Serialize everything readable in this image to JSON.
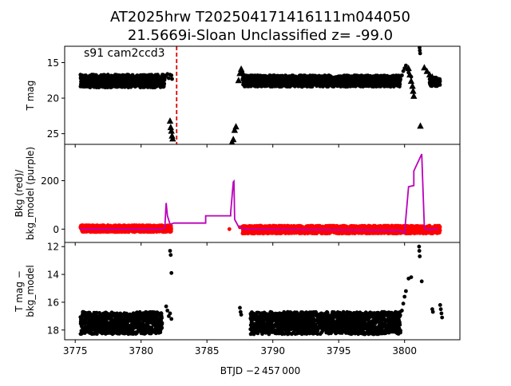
{
  "figure": {
    "title_line1": "AT2025hrw  T202504171416111m044050",
    "title_line2": "21.5669i-Sloan Unclassified z= -99.0",
    "xlabel": "BTJD −2 457 000"
  },
  "chart_data": [
    {
      "type": "scatter",
      "panel": "top",
      "ylabel": "T mag",
      "annotation": "s91 cam2ccd3",
      "xlim": [
        3774.2,
        3804.2
      ],
      "ylim": [
        26.5,
        12.7
      ],
      "yticks": [
        15,
        20,
        25
      ],
      "inverted_y": true,
      "vline": {
        "x": 3782.7,
        "color": "#dd0000",
        "style": "dashed"
      },
      "series": [
        {
          "marker": "dot",
          "color": "#000000",
          "segments": [
            {
              "x_start": 3775.4,
              "x_end": 3781.8,
              "y_center": 17.6,
              "spread": 0.9
            },
            {
              "x_start": 3787.7,
              "x_end": 3799.7,
              "y_center": 17.6,
              "spread": 0.8
            },
            {
              "x_start": 3801.9,
              "x_end": 3802.7,
              "y_center": 17.7,
              "spread": 0.6
            }
          ],
          "points": [
            {
              "x": 3781.9,
              "y": 16.9
            },
            {
              "x": 3782.0,
              "y": 16.6
            },
            {
              "x": 3782.1,
              "y": 17.2
            },
            {
              "x": 3782.2,
              "y": 16.7
            },
            {
              "x": 3782.3,
              "y": 16.8
            },
            {
              "x": 3782.35,
              "y": 17.3
            },
            {
              "x": 3799.8,
              "y": 16.8
            },
            {
              "x": 3799.9,
              "y": 16.2
            },
            {
              "x": 3800.0,
              "y": 15.8
            },
            {
              "x": 3800.1,
              "y": 15.4
            },
            {
              "x": 3800.2,
              "y": 15.9
            },
            {
              "x": 3800.3,
              "y": 16.4
            },
            {
              "x": 3800.5,
              "y": 17.0
            },
            {
              "x": 3801.1,
              "y": 12.1
            },
            {
              "x": 3801.12,
              "y": 12.5
            },
            {
              "x": 3801.14,
              "y": 12.9
            },
            {
              "x": 3801.16,
              "y": 13.3
            },
            {
              "x": 3801.18,
              "y": 13.7
            }
          ]
        },
        {
          "marker": "triangle",
          "color": "#000000",
          "points": [
            {
              "x": 3782.2,
              "y": 23.2
            },
            {
              "x": 3782.25,
              "y": 24.1
            },
            {
              "x": 3782.3,
              "y": 24.6
            },
            {
              "x": 3782.35,
              "y": 25.3
            },
            {
              "x": 3782.4,
              "y": 25.7
            },
            {
              "x": 3786.9,
              "y": 26.2
            },
            {
              "x": 3787.0,
              "y": 25.8
            },
            {
              "x": 3787.1,
              "y": 24.5
            },
            {
              "x": 3787.2,
              "y": 24.0
            },
            {
              "x": 3787.4,
              "y": 17.5
            },
            {
              "x": 3787.5,
              "y": 16.5
            },
            {
              "x": 3787.6,
              "y": 15.9
            },
            {
              "x": 3787.7,
              "y": 16.4
            },
            {
              "x": 3787.8,
              "y": 16.9
            },
            {
              "x": 3800.3,
              "y": 15.8
            },
            {
              "x": 3800.4,
              "y": 16.7
            },
            {
              "x": 3800.5,
              "y": 17.6
            },
            {
              "x": 3800.6,
              "y": 18.3
            },
            {
              "x": 3800.65,
              "y": 19.0
            },
            {
              "x": 3800.7,
              "y": 19.7
            },
            {
              "x": 3801.2,
              "y": 23.9
            },
            {
              "x": 3801.5,
              "y": 15.7
            },
            {
              "x": 3801.7,
              "y": 16.2
            },
            {
              "x": 3801.9,
              "y": 16.7
            },
            {
              "x": 3802.1,
              "y": 17.0
            },
            {
              "x": 3802.3,
              "y": 17.3
            },
            {
              "x": 3802.5,
              "y": 17.6
            }
          ]
        }
      ]
    },
    {
      "type": "line",
      "panel": "middle",
      "ylabel": "Bkg (red)/\nbkg_model (purple)",
      "xlim": [
        3774.2,
        3804.2
      ],
      "ylim": [
        -55,
        350
      ],
      "yticks": [
        0,
        200
      ],
      "series": [
        {
          "name": "Bkg",
          "marker": "dot",
          "color": "#ff0000",
          "segments": [
            {
              "x_start": 3775.4,
              "x_end": 3782.3,
              "y_center": 2,
              "spread": 14
            },
            {
              "x_start": 3787.7,
              "x_end": 3802.7,
              "y_center": -2,
              "spread": 16
            }
          ],
          "points": [
            {
              "x": 3786.7,
              "y": 0
            },
            {
              "x": 3787.5,
              "y": 8
            }
          ]
        },
        {
          "name": "bkg_model",
          "color": "#bb00bb",
          "x": [
            3775.4,
            3781.5,
            3781.8,
            3781.9,
            3782.0,
            3782.2,
            3782.5,
            3784.9,
            3784.9,
            3786.8,
            3786.8,
            3787.0,
            3787.05,
            3787.1,
            3787.4,
            3787.6,
            3788.0,
            3799.6,
            3800.0,
            3800.3,
            3800.7,
            3800.7,
            3801.3,
            3801.5,
            3801.6,
            3801.7,
            3802.5
          ],
          "y": [
            0,
            0,
            5,
            108,
            55,
            20,
            25,
            25,
            55,
            55,
            68,
            195,
            198,
            40,
            10,
            5,
            0,
            -5,
            -15,
            175,
            180,
            240,
            310,
            5,
            0,
            -3,
            0
          ]
        }
      ]
    },
    {
      "type": "scatter",
      "panel": "bottom",
      "ylabel": "T mag −\nbkg_model",
      "xlim": [
        3774.2,
        3804.2
      ],
      "ylim": [
        18.7,
        11.7
      ],
      "yticks": [
        12,
        14,
        16,
        18
      ],
      "inverted_y": true,
      "series": [
        {
          "marker": "dot",
          "color": "#000000",
          "segments": [
            {
              "x_start": 3775.4,
              "x_end": 3781.6,
              "y_center": 17.5,
              "spread": 0.8
            },
            {
              "x_start": 3788.3,
              "x_end": 3799.7,
              "y_center": 17.5,
              "spread": 0.8
            }
          ],
          "points": [
            {
              "x": 3781.9,
              "y": 16.3
            },
            {
              "x": 3782.0,
              "y": 16.6
            },
            {
              "x": 3782.1,
              "y": 17.0
            },
            {
              "x": 3782.2,
              "y": 16.8
            },
            {
              "x": 3782.3,
              "y": 17.2
            },
            {
              "x": 3782.2,
              "y": 12.3
            },
            {
              "x": 3782.25,
              "y": 12.6
            },
            {
              "x": 3782.3,
              "y": 13.9
            },
            {
              "x": 3787.5,
              "y": 16.4
            },
            {
              "x": 3787.55,
              "y": 16.7
            },
            {
              "x": 3787.6,
              "y": 16.9
            },
            {
              "x": 3799.8,
              "y": 16.6
            },
            {
              "x": 3799.9,
              "y": 16.1
            },
            {
              "x": 3800.0,
              "y": 15.6
            },
            {
              "x": 3800.1,
              "y": 15.2
            },
            {
              "x": 3800.3,
              "y": 14.3
            },
            {
              "x": 3800.5,
              "y": 14.2
            },
            {
              "x": 3801.1,
              "y": 12.0
            },
            {
              "x": 3801.12,
              "y": 12.3
            },
            {
              "x": 3801.15,
              "y": 12.7
            },
            {
              "x": 3801.3,
              "y": 14.5
            },
            {
              "x": 3802.1,
              "y": 16.5
            },
            {
              "x": 3802.15,
              "y": 16.7
            },
            {
              "x": 3802.7,
              "y": 16.2
            },
            {
              "x": 3802.75,
              "y": 16.5
            },
            {
              "x": 3802.8,
              "y": 16.8
            },
            {
              "x": 3802.85,
              "y": 17.1
            }
          ]
        }
      ]
    }
  ],
  "xticks": [
    3775,
    3780,
    3785,
    3790,
    3795,
    3800
  ]
}
